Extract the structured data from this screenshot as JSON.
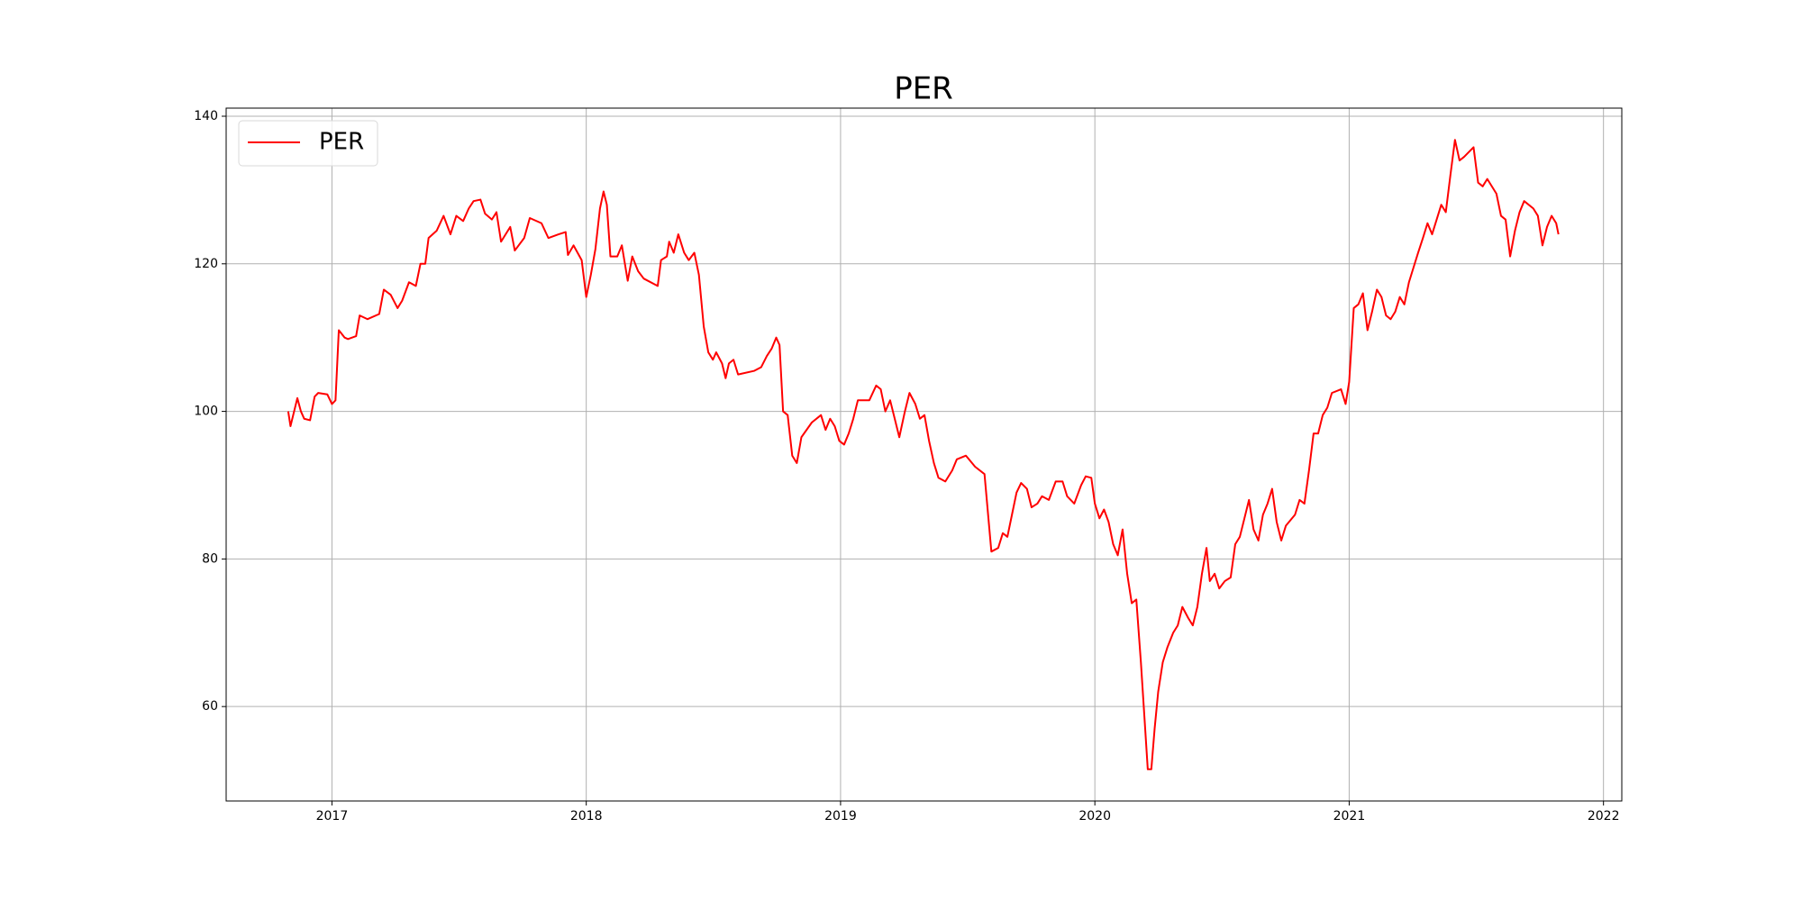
{
  "chart_data": {
    "type": "line",
    "title": "PER",
    "x": [
      2016.828,
      2016.837,
      2016.864,
      2016.878,
      2016.891,
      2016.914,
      2016.932,
      2016.946,
      2016.982,
      2017.0,
      2017.014,
      2017.027,
      2017.05,
      2017.063,
      2017.095,
      2017.109,
      2017.14,
      2017.186,
      2017.204,
      2017.231,
      2017.258,
      2017.276,
      2017.303,
      2017.33,
      2017.348,
      2017.367,
      2017.38,
      2017.412,
      2017.439,
      2017.466,
      2017.489,
      2017.516,
      2017.538,
      2017.557,
      2017.584,
      2017.602,
      2017.629,
      2017.647,
      2017.665,
      2017.701,
      2017.719,
      2017.756,
      2017.778,
      2017.824,
      2017.851,
      2017.891,
      2017.919,
      2017.928,
      2017.95,
      2017.982,
      2018.0,
      2018.018,
      2018.036,
      2018.054,
      2018.068,
      2018.081,
      2018.095,
      2018.122,
      2018.14,
      2018.163,
      2018.181,
      2018.204,
      2018.226,
      2018.281,
      2018.294,
      2018.317,
      2018.326,
      2018.344,
      2018.362,
      2018.385,
      2018.403,
      2018.425,
      2018.443,
      2018.462,
      2018.48,
      2018.498,
      2018.511,
      2018.534,
      2018.548,
      2018.561,
      2018.579,
      2018.597,
      2018.661,
      2018.688,
      2018.71,
      2018.729,
      2018.747,
      2018.76,
      2018.774,
      2018.792,
      2018.81,
      2018.828,
      2018.846,
      2018.887,
      2018.923,
      2018.941,
      2018.959,
      2018.977,
      2018.995,
      2019.014,
      2019.032,
      2019.05,
      2019.068,
      2019.113,
      2019.14,
      2019.158,
      2019.176,
      2019.195,
      2019.213,
      2019.231,
      2019.253,
      2019.271,
      2019.294,
      2019.312,
      2019.33,
      2019.348,
      2019.367,
      2019.385,
      2019.412,
      2019.439,
      2019.457,
      2019.493,
      2019.529,
      2019.566,
      2019.575,
      2019.593,
      2019.62,
      2019.638,
      2019.656,
      2019.674,
      2019.692,
      2019.71,
      2019.733,
      2019.751,
      2019.774,
      2019.792,
      2019.819,
      2019.846,
      2019.873,
      2019.891,
      2019.919,
      2019.946,
      2019.964,
      2019.986,
      2020.0,
      2020.018,
      2020.036,
      2020.054,
      2020.072,
      2020.09,
      2020.109,
      2020.127,
      2020.145,
      2020.163,
      2020.181,
      2020.195,
      2020.208,
      2020.222,
      2020.235,
      2020.249,
      2020.267,
      2020.285,
      2020.308,
      2020.326,
      2020.344,
      2020.367,
      2020.385,
      2020.403,
      2020.421,
      2020.439,
      2020.452,
      2020.471,
      2020.489,
      2020.511,
      2020.534,
      2020.552,
      2020.57,
      2020.588,
      2020.606,
      2020.624,
      2020.643,
      2020.661,
      2020.679,
      2020.697,
      2020.715,
      2020.733,
      2020.751,
      2020.787,
      2020.805,
      2020.824,
      2020.842,
      2020.86,
      2020.878,
      2020.896,
      2020.914,
      2020.932,
      2020.968,
      2020.986,
      2021.0,
      2021.018,
      2021.036,
      2021.054,
      2021.072,
      2021.09,
      2021.109,
      2021.127,
      2021.145,
      2021.163,
      2021.181,
      2021.199,
      2021.217,
      2021.235,
      2021.253,
      2021.271,
      2021.29,
      2021.308,
      2021.326,
      2021.344,
      2021.362,
      2021.38,
      2021.398,
      2021.416,
      2021.434,
      2021.452,
      2021.489,
      2021.507,
      2021.525,
      2021.543,
      2021.579,
      2021.597,
      2021.615,
      2021.633,
      2021.652,
      2021.67,
      2021.688,
      2021.724,
      2021.742,
      2021.76,
      2021.778,
      2021.796,
      2021.814,
      2021.823
    ],
    "series": [
      {
        "name": "PER",
        "color": "#ff0000",
        "values": [
          100,
          98,
          101.8,
          100,
          99,
          98.8,
          102,
          102.5,
          102.3,
          101,
          101.5,
          111,
          110,
          109.8,
          110.2,
          113,
          112.5,
          113.2,
          116.5,
          115.8,
          114,
          115,
          117.5,
          117,
          120,
          120,
          123.5,
          124.5,
          126.5,
          124,
          126.5,
          125.8,
          127.5,
          128.5,
          128.7,
          126.8,
          126,
          127,
          123,
          125,
          121.8,
          123.5,
          126.2,
          125.5,
          123.5,
          124,
          124.3,
          121.2,
          122.5,
          120.5,
          115.5,
          118.5,
          122,
          127.5,
          129.8,
          128,
          121,
          121,
          122.5,
          117.7,
          121,
          119,
          118,
          117,
          120.5,
          121,
          123,
          121.5,
          124,
          121.5,
          120.5,
          121.5,
          118.5,
          111.5,
          108,
          107,
          108,
          106.5,
          104.5,
          106.5,
          107,
          105,
          105.5,
          106,
          107.5,
          108.5,
          110,
          109,
          100,
          99.5,
          94,
          93,
          96.5,
          98.5,
          99.5,
          97.5,
          99,
          98,
          96,
          95.5,
          97,
          99,
          101.5,
          101.5,
          103.5,
          103,
          100,
          101.5,
          99,
          96.5,
          100,
          102.5,
          101,
          99,
          99.5,
          96,
          93,
          91,
          90.5,
          92,
          93.5,
          94,
          92.5,
          91.5,
          88,
          81,
          81.5,
          83.5,
          83,
          86,
          89,
          90.3,
          89.5,
          87,
          87.5,
          88.5,
          88,
          90.5,
          90.5,
          88.5,
          87.5,
          90,
          91.2,
          91,
          87.5,
          85.5,
          86.7,
          85,
          82,
          80.5,
          84,
          78,
          74,
          74.5,
          66,
          58.5,
          51.5,
          51.5,
          57,
          62,
          66,
          68,
          70,
          71,
          73.5,
          72,
          71,
          73.5,
          78,
          81.5,
          77,
          78,
          76,
          77,
          77.5,
          82,
          83,
          85.5,
          88,
          84,
          82.5,
          86,
          87.5,
          89.5,
          85,
          82.5,
          84.5,
          86,
          88,
          87.5,
          92,
          97,
          97,
          99.5,
          100.5,
          102.5,
          103,
          101,
          104,
          114,
          114.5,
          116,
          111,
          113.5,
          116.5,
          115.5,
          113,
          112.5,
          113.5,
          115.5,
          114.5,
          117.5,
          119.5,
          121.5,
          123.5,
          125.5,
          124,
          126,
          128,
          127,
          132,
          136.8,
          134,
          134.5,
          135.8,
          131,
          130.5,
          131.5,
          129.5,
          126.5,
          126,
          121,
          124.5,
          127,
          128.5,
          127.5,
          126.5,
          122.5,
          125,
          126.5,
          125.5,
          124
        ]
      }
    ],
    "xlim": [
      2016.584,
      2022.072
    ],
    "xticks": [
      2017,
      2018,
      2019,
      2020,
      2021,
      2022
    ],
    "ylim": [
      47.2,
      141.1
    ],
    "yticks": [
      60,
      80,
      100,
      120,
      140
    ],
    "grid": true,
    "legend": "upper left"
  }
}
